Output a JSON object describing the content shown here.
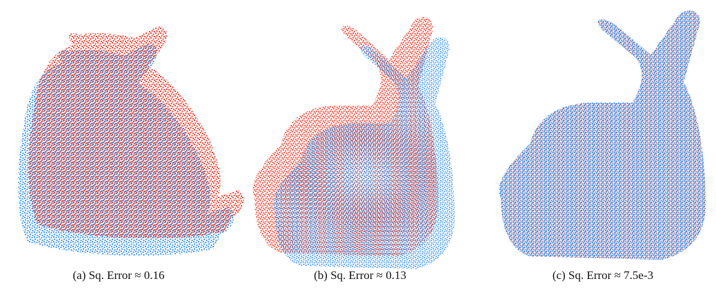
{
  "figure": {
    "captions": [
      "(a) Sq. Error ≈ 0.16",
      "(b) Sq. Error ≈ 0.13",
      "(c) Sq. Error ≈ 7.5e-3"
    ]
  }
}
